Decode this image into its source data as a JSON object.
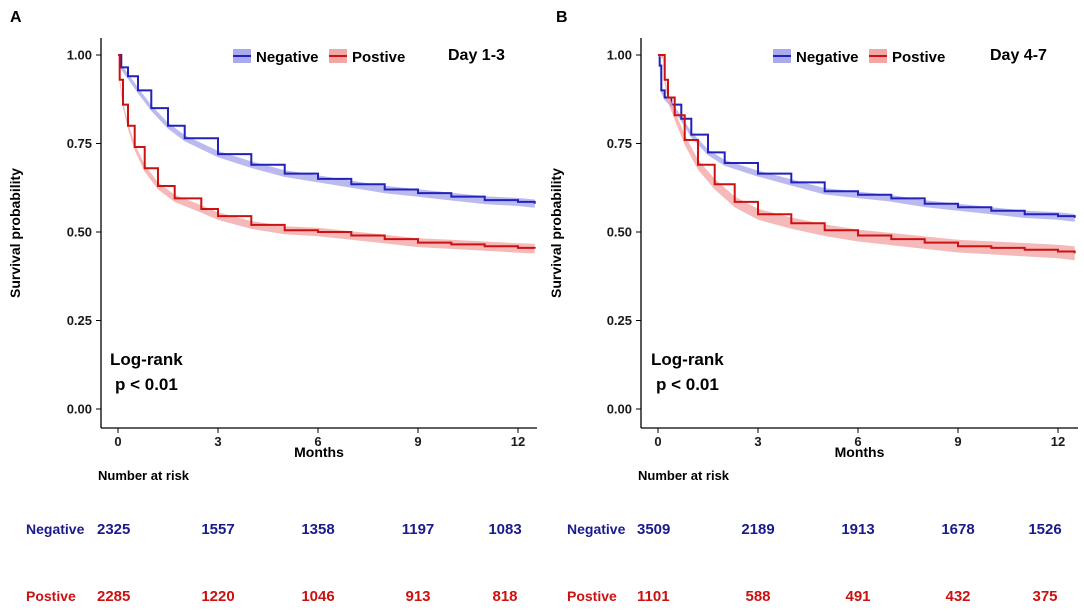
{
  "chart_data": [
    {
      "type": "line",
      "panel": "A",
      "title": "Day 1-3",
      "xlabel": "Months",
      "ylabel": "Survival probability",
      "xlim": [
        0,
        12.5
      ],
      "ylim": [
        0,
        1
      ],
      "x_ticks": [
        0,
        3,
        6,
        9,
        12
      ],
      "y_ticks": [
        "0.00",
        "0.25",
        "0.50",
        "0.75",
        "1.00"
      ],
      "annotation": [
        "Log-rank",
        "p < 0.01"
      ],
      "series": [
        {
          "name": "Negative",
          "color": "#2222bb",
          "band_color": "#a9a9ee",
          "x": [
            0,
            0.1,
            0.3,
            0.6,
            1.0,
            1.5,
            2.0,
            3.0,
            4.0,
            5.0,
            6.0,
            7.0,
            8.0,
            9.0,
            10.0,
            11.0,
            12.0,
            12.5
          ],
          "y": [
            1.0,
            0.965,
            0.94,
            0.9,
            0.85,
            0.8,
            0.765,
            0.72,
            0.69,
            0.665,
            0.65,
            0.635,
            0.62,
            0.61,
            0.6,
            0.59,
            0.585,
            0.58
          ],
          "ci": 0.012
        },
        {
          "name": "Postive",
          "color": "#cc1111",
          "band_color": "#f2a7a7",
          "x": [
            0,
            0.05,
            0.15,
            0.3,
            0.5,
            0.8,
            1.2,
            1.7,
            2.5,
            3.0,
            4.0,
            5.0,
            6.0,
            7.0,
            8.0,
            9.0,
            10.0,
            11.0,
            12.0,
            12.5
          ],
          "y": [
            1.0,
            0.93,
            0.86,
            0.8,
            0.74,
            0.68,
            0.63,
            0.595,
            0.565,
            0.545,
            0.52,
            0.505,
            0.5,
            0.49,
            0.48,
            0.47,
            0.465,
            0.46,
            0.455,
            0.453
          ],
          "ci": 0.014
        }
      ],
      "risk_table": {
        "title": "Number at risk",
        "times": [
          0,
          3,
          6,
          9,
          12
        ],
        "rows": [
          {
            "name": "Negative",
            "color": "#1a1a8c",
            "values": [
              "2325",
              "1557",
              "1358",
              "1197",
              "1083"
            ]
          },
          {
            "name": "Postive",
            "color": "#cc1111",
            "values": [
              "2285",
              "1220",
              "1046",
              "913",
              "818"
            ]
          }
        ]
      }
    },
    {
      "type": "line",
      "panel": "B",
      "title": "Day 4-7",
      "xlabel": "Months",
      "ylabel": "Survival probability",
      "xlim": [
        0,
        12.5
      ],
      "ylim": [
        0,
        1
      ],
      "x_ticks": [
        0,
        3,
        6,
        9,
        12
      ],
      "y_ticks": [
        "0.00",
        "0.25",
        "0.50",
        "0.75",
        "1.00"
      ],
      "annotation": [
        "Log-rank",
        "p < 0.01"
      ],
      "series": [
        {
          "name": "Negative",
          "color": "#2222bb",
          "band_color": "#a9a9ee",
          "x": [
            0,
            0.05,
            0.1,
            0.2,
            0.4,
            0.7,
            1.0,
            1.5,
            2.0,
            3.0,
            4.0,
            5.0,
            6.0,
            7.0,
            8.0,
            9.0,
            10.0,
            11.0,
            12.0,
            12.5
          ],
          "y": [
            1.0,
            0.97,
            0.9,
            0.88,
            0.86,
            0.82,
            0.775,
            0.725,
            0.695,
            0.665,
            0.64,
            0.615,
            0.605,
            0.595,
            0.58,
            0.57,
            0.56,
            0.55,
            0.545,
            0.54
          ],
          "ci": 0.011
        },
        {
          "name": "Postive",
          "color": "#cc1111",
          "band_color": "#f2a7a7",
          "x": [
            0,
            0.15,
            0.2,
            0.3,
            0.5,
            0.8,
            1.2,
            1.7,
            2.3,
            3.0,
            4.0,
            5.0,
            6.0,
            7.0,
            8.0,
            9.0,
            10.0,
            11.0,
            12.0,
            12.5
          ],
          "y": [
            1.0,
            1.0,
            0.93,
            0.88,
            0.83,
            0.76,
            0.69,
            0.635,
            0.585,
            0.55,
            0.525,
            0.505,
            0.49,
            0.48,
            0.47,
            0.46,
            0.455,
            0.45,
            0.445,
            0.44
          ],
          "ci": 0.02
        }
      ],
      "risk_table": {
        "title": "Number at risk",
        "times": [
          0,
          3,
          6,
          9,
          12
        ],
        "rows": [
          {
            "name": "Negative",
            "color": "#1a1a8c",
            "values": [
              "3509",
              "2189",
              "1913",
              "1678",
              "1526"
            ]
          },
          {
            "name": "Postive",
            "color": "#cc1111",
            "values": [
              "1101",
              "588",
              "491",
              "432",
              "375"
            ]
          }
        ]
      }
    }
  ]
}
